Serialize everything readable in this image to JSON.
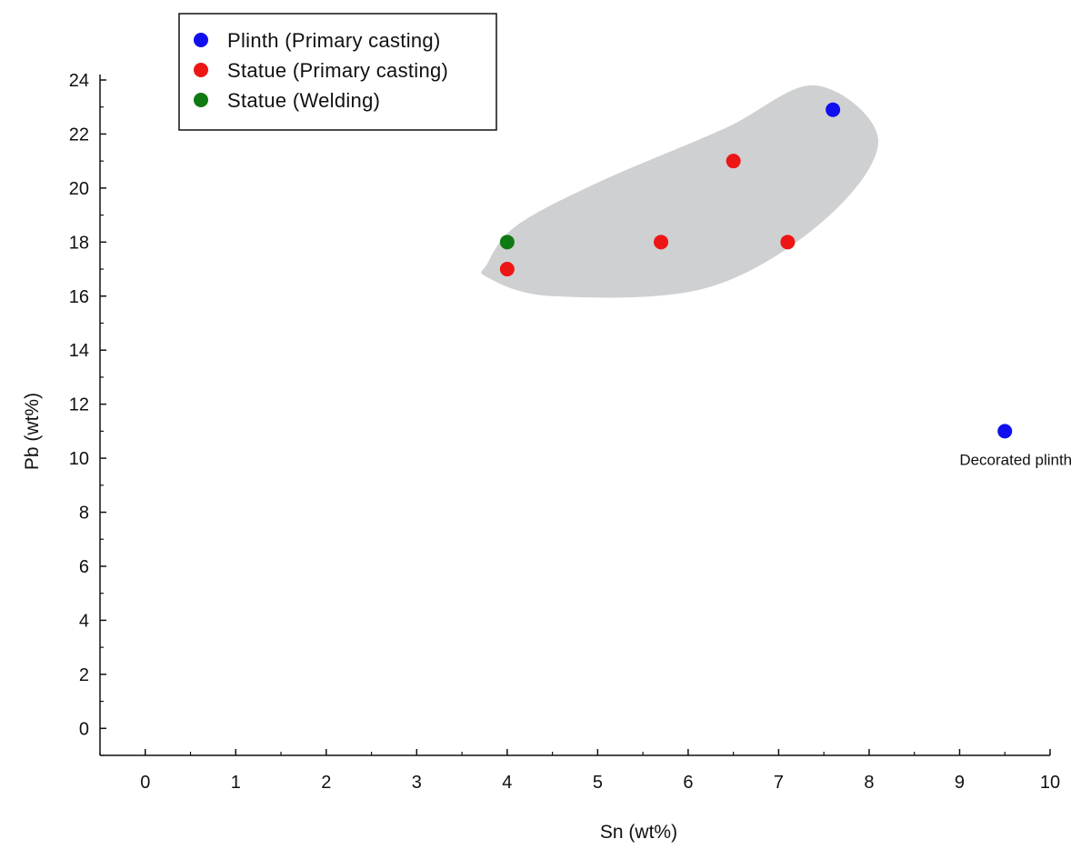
{
  "chart_data": {
    "type": "scatter",
    "xlabel": "Sn (wt%)",
    "ylabel": "Pb (wt%)",
    "xlim": [
      -0.5,
      10
    ],
    "ylim": [
      -1,
      24
    ],
    "xticks": [
      0,
      1,
      2,
      3,
      4,
      5,
      6,
      7,
      8,
      9,
      10
    ],
    "yticks": [
      0,
      2,
      4,
      6,
      8,
      10,
      12,
      14,
      16,
      18,
      20,
      22,
      24
    ],
    "minor_tick_step": {
      "x": 0.5,
      "y": 1
    },
    "grid": false,
    "legend_position": "top-left",
    "series": [
      {
        "name": "Plinth (Primary casting)",
        "color": "#1010ee",
        "points": [
          {
            "x": 7.6,
            "y": 22.9
          },
          {
            "x": 9.5,
            "y": 11.0
          }
        ]
      },
      {
        "name": "Statue (Primary casting)",
        "color": "#ee1515",
        "points": [
          {
            "x": 4.0,
            "y": 17.0
          },
          {
            "x": 5.7,
            "y": 18.0
          },
          {
            "x": 6.5,
            "y": 21.0
          },
          {
            "x": 7.1,
            "y": 18.0
          }
        ]
      },
      {
        "name": "Statue (Welding)",
        "color": "#0f7a12",
        "points": [
          {
            "x": 4.0,
            "y": 18.0
          }
        ]
      }
    ],
    "annotations": [
      {
        "text": "Decorated plinth",
        "x": 9.5,
        "y": 11.0,
        "placement": "below"
      }
    ],
    "shaded_region": {
      "color": "#cfd0d2",
      "outline": [
        [
          3.78,
          17.2
        ],
        [
          4.1,
          18.6
        ],
        [
          5.0,
          20.2
        ],
        [
          6.4,
          22.2
        ],
        [
          7.4,
          23.8
        ],
        [
          8.1,
          21.8
        ],
        [
          7.5,
          18.8
        ],
        [
          6.2,
          16.3
        ],
        [
          4.5,
          16.0
        ],
        [
          3.78,
          16.7
        ]
      ]
    }
  }
}
